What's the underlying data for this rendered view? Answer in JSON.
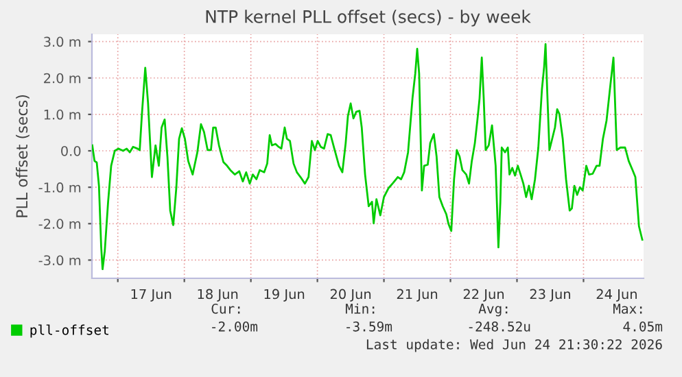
{
  "chart_data": {
    "type": "line",
    "title": "NTP kernel PLL offset (secs) - by week",
    "ylabel": "PLL offset (secs)",
    "x": [
      "2026-06-16T14:48",
      "2026-06-16T15:36",
      "2026-06-16T16:24",
      "2026-06-16T17:12",
      "2026-06-16T18:00",
      "2026-06-16T18:30",
      "2026-06-16T19:18",
      "2026-06-16T20:30",
      "2026-06-16T21:36",
      "2026-06-16T22:54",
      "2026-06-17T00:12",
      "2026-06-17T01:54",
      "2026-06-17T03:12",
      "2026-06-17T04:18",
      "2026-06-17T05:30",
      "2026-06-17T07:06",
      "2026-06-17T07:54",
      "2026-06-17T08:42",
      "2026-06-17T09:54",
      "2026-06-17T10:54",
      "2026-06-17T12:18",
      "2026-06-17T13:36",
      "2026-06-17T14:48",
      "2026-06-17T15:48",
      "2026-06-17T16:54",
      "2026-06-17T17:54",
      "2026-06-17T18:54",
      "2026-06-17T20:00",
      "2026-06-17T21:06",
      "2026-06-17T22:06",
      "2026-06-17T23:06",
      "2026-06-18T00:12",
      "2026-06-18T01:24",
      "2026-06-18T03:00",
      "2026-06-18T04:42",
      "2026-06-18T06:00",
      "2026-06-18T07:06",
      "2026-06-18T08:24",
      "2026-06-18T09:36",
      "2026-06-18T10:24",
      "2026-06-18T11:18",
      "2026-06-18T12:30",
      "2026-06-18T14:06",
      "2026-06-18T15:24",
      "2026-06-18T16:36",
      "2026-06-18T18:12",
      "2026-06-18T19:48",
      "2026-06-18T21:06",
      "2026-06-18T22:18",
      "2026-06-18T23:36",
      "2026-06-19T00:42",
      "2026-06-19T02:00",
      "2026-06-19T03:12",
      "2026-06-19T04:48",
      "2026-06-19T05:54",
      "2026-06-19T06:48",
      "2026-06-19T07:36",
      "2026-06-19T08:54",
      "2026-06-19T10:00",
      "2026-06-19T11:00",
      "2026-06-19T12:12",
      "2026-06-19T13:00",
      "2026-06-19T14:06",
      "2026-06-19T15:24",
      "2026-06-19T16:36",
      "2026-06-19T17:54",
      "2026-06-19T19:30",
      "2026-06-19T20:48",
      "2026-06-19T22:00",
      "2026-06-19T23:06",
      "2026-06-20T00:06",
      "2026-06-20T01:12",
      "2026-06-20T02:24",
      "2026-06-20T03:42",
      "2026-06-20T04:48",
      "2026-06-20T06:06",
      "2026-06-20T07:48",
      "2026-06-20T09:00",
      "2026-06-20T10:12",
      "2026-06-20T11:00",
      "2026-06-20T12:00",
      "2026-06-20T13:00",
      "2026-06-20T14:00",
      "2026-06-20T15:12",
      "2026-06-20T16:00",
      "2026-06-20T17:12",
      "2026-06-20T18:30",
      "2026-06-20T19:42",
      "2026-06-20T20:18",
      "2026-06-20T21:18",
      "2026-06-20T22:42",
      "2026-06-21T00:00",
      "2026-06-21T01:42",
      "2026-06-21T03:18",
      "2026-06-21T05:00",
      "2026-06-21T06:12",
      "2026-06-21T07:18",
      "2026-06-21T08:42",
      "2026-06-21T10:18",
      "2026-06-21T11:18",
      "2026-06-21T12:00",
      "2026-06-21T12:42",
      "2026-06-21T13:42",
      "2026-06-21T14:30",
      "2026-06-21T15:48",
      "2026-06-21T16:42",
      "2026-06-21T18:00",
      "2026-06-21T19:00",
      "2026-06-21T20:00",
      "2026-06-21T21:12",
      "2026-06-21T22:30",
      "2026-06-21T23:18",
      "2026-06-22T00:18",
      "2026-06-22T01:18",
      "2026-06-22T02:18",
      "2026-06-22T03:18",
      "2026-06-22T04:18",
      "2026-06-22T05:42",
      "2026-06-22T06:42",
      "2026-06-22T07:42",
      "2026-06-22T08:48",
      "2026-06-22T09:42",
      "2026-06-22T10:30",
      "2026-06-22T11:18",
      "2026-06-22T12:00",
      "2026-06-22T12:42",
      "2026-06-22T13:48",
      "2026-06-22T15:00",
      "2026-06-22T16:18",
      "2026-06-22T17:18",
      "2026-06-22T18:00",
      "2026-06-22T18:30",
      "2026-06-22T19:42",
      "2026-06-22T20:42",
      "2026-06-22T21:18",
      "2026-06-22T22:18",
      "2026-06-22T23:18",
      "2026-06-23T00:18",
      "2026-06-23T01:18",
      "2026-06-23T02:18",
      "2026-06-23T03:18",
      "2026-06-23T04:18",
      "2026-06-23T05:18",
      "2026-06-23T06:30",
      "2026-06-23T07:42",
      "2026-06-23T09:00",
      "2026-06-23T09:48",
      "2026-06-23T10:18",
      "2026-06-23T11:00",
      "2026-06-23T11:42",
      "2026-06-23T12:42",
      "2026-06-23T13:42",
      "2026-06-23T14:30",
      "2026-06-23T15:18",
      "2026-06-23T16:30",
      "2026-06-23T17:42",
      "2026-06-23T19:00",
      "2026-06-23T19:48",
      "2026-06-23T20:42",
      "2026-06-23T21:42",
      "2026-06-23T22:42",
      "2026-06-23T23:42",
      "2026-06-24T01:00",
      "2026-06-24T02:00",
      "2026-06-24T03:18",
      "2026-06-24T04:42",
      "2026-06-24T05:48",
      "2026-06-24T07:00",
      "2026-06-24T08:18",
      "2026-06-24T09:42",
      "2026-06-24T10:48",
      "2026-06-24T12:00",
      "2026-06-24T13:18",
      "2026-06-24T15:00",
      "2026-06-24T16:18",
      "2026-06-24T17:42",
      "2026-06-24T18:42",
      "2026-06-24T20:00",
      "2026-06-24T21:12"
    ],
    "series": [
      {
        "name": "pll-offset",
        "color": "#00cc00",
        "values": [
          0.15,
          -0.28,
          -0.32,
          -0.96,
          -2.63,
          -3.25,
          -2.75,
          -1.4,
          -0.41,
          0.0,
          0.06,
          0.0,
          0.06,
          -0.04,
          0.11,
          0.06,
          0.02,
          1.01,
          2.28,
          1.32,
          -0.72,
          0.15,
          -0.41,
          0.64,
          0.86,
          -0.16,
          -1.64,
          -2.04,
          -1.02,
          0.33,
          0.62,
          0.33,
          -0.28,
          -0.65,
          -0.04,
          0.73,
          0.52,
          0.02,
          0.02,
          0.64,
          0.64,
          0.15,
          -0.31,
          -0.41,
          -0.53,
          -0.65,
          -0.56,
          -0.84,
          -0.59,
          -0.9,
          -0.65,
          -0.78,
          -0.53,
          -0.59,
          -0.35,
          0.43,
          0.15,
          0.19,
          0.11,
          0.06,
          0.64,
          0.33,
          0.27,
          -0.35,
          -0.59,
          -0.72,
          -0.9,
          -0.72,
          0.27,
          0.02,
          0.27,
          0.11,
          0.06,
          0.46,
          0.43,
          0.06,
          -0.41,
          -0.59,
          0.21,
          0.95,
          1.3,
          0.89,
          1.07,
          1.1,
          0.64,
          -0.65,
          -1.52,
          -1.4,
          -1.99,
          -1.33,
          -1.77,
          -1.27,
          -1.02,
          -0.88,
          -0.72,
          -0.78,
          -0.59,
          -0.04,
          1.44,
          2.12,
          2.8,
          2.12,
          -1.09,
          -0.41,
          -0.38,
          0.21,
          0.46,
          -0.16,
          -1.27,
          -1.52,
          -1.74,
          -2.01,
          -2.2,
          -0.78,
          0.02,
          -0.16,
          -0.53,
          -0.65,
          -0.9,
          -0.28,
          0.21,
          0.83,
          1.44,
          2.56,
          1.44,
          0.02,
          0.15,
          0.7,
          -0.41,
          -2.65,
          -1.4,
          0.09,
          -0.04,
          0.09,
          -0.65,
          -0.47,
          -0.68,
          -0.41,
          -0.65,
          -0.9,
          -1.27,
          -0.96,
          -1.33,
          -0.78,
          0.09,
          1.69,
          2.31,
          2.93,
          1.44,
          0.02,
          0.33,
          0.64,
          1.14,
          1.01,
          0.33,
          -0.78,
          -1.64,
          -1.58,
          -0.96,
          -1.21,
          -1.0,
          -1.09,
          -0.41,
          -0.65,
          -0.63,
          -0.41,
          -0.41,
          0.33,
          0.83,
          1.81,
          2.56,
          0.02,
          0.09,
          0.09,
          -0.28,
          -0.53,
          -0.72,
          -2.07,
          -2.44
        ]
      }
    ],
    "xlim": [
      "2026-06-16T14:40",
      "2026-06-24T21:40"
    ],
    "xticks": [
      {
        "value": "2026-06-17T00:00",
        "label": null
      },
      {
        "value": "2026-06-17T12:00",
        "label": "17 Jun"
      },
      {
        "value": "2026-06-18T00:00",
        "label": null
      },
      {
        "value": "2026-06-18T12:00",
        "label": "18 Jun"
      },
      {
        "value": "2026-06-19T00:00",
        "label": null
      },
      {
        "value": "2026-06-19T12:00",
        "label": "19 Jun"
      },
      {
        "value": "2026-06-20T00:00",
        "label": null
      },
      {
        "value": "2026-06-20T12:00",
        "label": "20 Jun"
      },
      {
        "value": "2026-06-21T00:00",
        "label": null
      },
      {
        "value": "2026-06-21T12:00",
        "label": "21 Jun"
      },
      {
        "value": "2026-06-22T00:00",
        "label": null
      },
      {
        "value": "2026-06-22T12:00",
        "label": "22 Jun"
      },
      {
        "value": "2026-06-23T00:00",
        "label": null
      },
      {
        "value": "2026-06-23T12:00",
        "label": "23 Jun"
      },
      {
        "value": "2026-06-24T00:00",
        "label": null
      },
      {
        "value": "2026-06-24T12:00",
        "label": "24 Jun"
      }
    ],
    "ylim": [
      -3.5,
      3.2
    ],
    "yticks": [
      {
        "value": -3,
        "label": "-3.0 m"
      },
      {
        "value": -2,
        "label": "-2.0 m"
      },
      {
        "value": -1,
        "label": "-1.0 m"
      },
      {
        "value": 0,
        "label": "0.0"
      },
      {
        "value": 1,
        "label": "1.0 m"
      },
      {
        "value": 2,
        "label": "2.0 m"
      },
      {
        "value": 3,
        "label": "3.0 m"
      }
    ],
    "grid": true,
    "legend": "bottom",
    "annotations": [
      "Cur:",
      "Min:",
      "Avg:",
      "Max:",
      "-2.00m",
      "-3.59m",
      "-248.52u",
      "4.05m",
      "Last update: Wed Jun 24 21:30:22 2026"
    ]
  }
}
